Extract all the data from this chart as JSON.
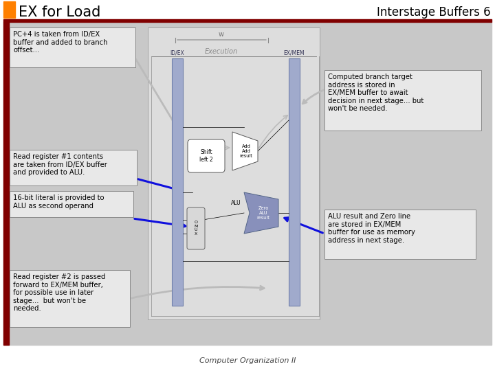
{
  "title_left": "EX for Load",
  "title_right": "Interstage Buffers 6",
  "orange_rect_color": "#FF8000",
  "dark_red_bar_color": "#800000",
  "slide_bg": "#FFFFFF",
  "content_bg": "#C8C8C8",
  "box_fill": "#E8E8E8",
  "box_edge": "#666666",
  "buffer_fill": "#A0AACC",
  "buffer_edge": "#7080AA",
  "blue_arrow": "#1010DD",
  "gray_arrow": "#BBBBBB",
  "footnote": "Computer Organization II",
  "annotations": [
    "PC+4 is taken from ID/EX\nbuffer and added to branch\noffset...",
    "Read register #1 contents\nare taken from ID/EX buffer\nand provided to ALU.",
    "16-bit literal is provided to\nALU as second operand",
    "Read register #2 is passed\nforward to EX/MEM buffer,\nfor possible use in later\nstage...  but won't be\nneeded.",
    "Computed branch target\naddress is stored in\nEX/MEM buffer to await\ndecision in next stage... but\nwon't be needed.",
    "ALU result and Zero line\nare stored in EX/MEM\nbuffer for use as memory\naddress in next stage."
  ],
  "idex_label": "ID/EX",
  "exmem_label": "EX/MEM",
  "w_label": "w",
  "exec_label": "Execution",
  "shift_label": "Shift\nleft 2",
  "add_label": "Add\nAdd\nresult",
  "mux_label": "O\nM\nU\nX",
  "alu_label": "Zero\nALU\nresult",
  "alu_left_label": "ALU"
}
